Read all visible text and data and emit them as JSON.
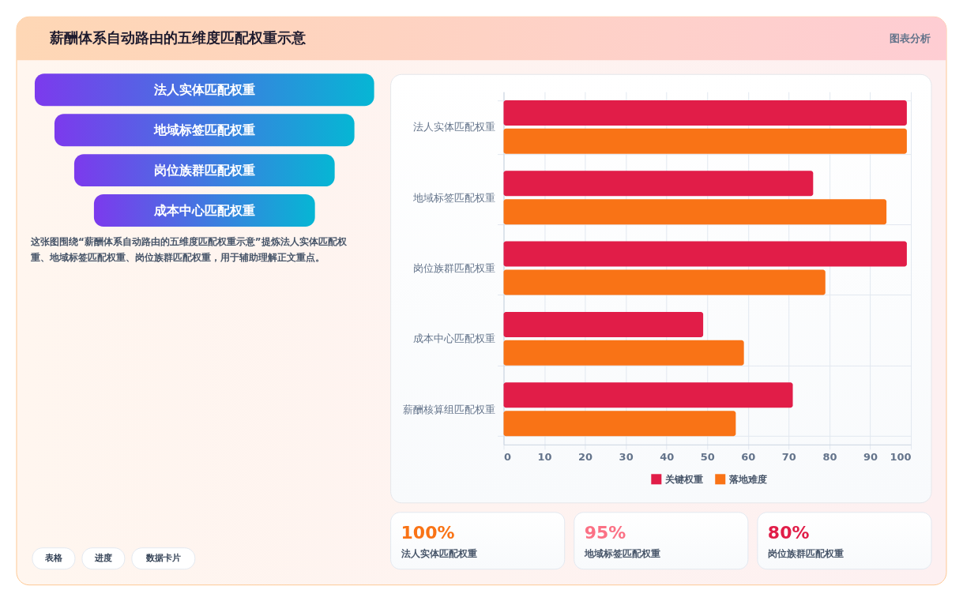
{
  "chart_data": [
    {
      "type": "other",
      "title": "薪酬体系自动路由的五维度匹配权重示意",
      "annotations": [
        "图表分析"
      ]
    },
    {
      "type": "other",
      "categories": [
        "法人实体匹配权重",
        "地域标签匹配权重",
        "岗位族群匹配权重",
        "成本中心匹配权重"
      ],
      "annotations": [
        "这张图围绕“薪酬体系自动路由的五维度匹配权重示意”提炼法人实体匹配权重、地域标签匹配权重、岗位族群匹配权重，用于辅助理解正文重点。"
      ]
    },
    {
      "type": "bar",
      "orientation": "horizontal",
      "categories": [
        "法人实体匹配权重",
        "地域标签匹配权重",
        "岗位族群匹配权重",
        "成本中心匹配权重",
        "薪酬核算组匹配权重"
      ],
      "series": [
        {
          "name": "关键权重",
          "color": "#e11d48",
          "values": [
            99,
            76,
            99,
            49,
            71
          ]
        },
        {
          "name": "落地难度",
          "color": "#f97316",
          "values": [
            99,
            94,
            79,
            59,
            57
          ]
        }
      ],
      "xlim": [
        0,
        100
      ],
      "xticks": [
        0,
        10,
        20,
        30,
        40,
        50,
        60,
        70,
        80,
        90,
        100
      ],
      "grid": true,
      "legend": "bottom"
    },
    {
      "type": "other",
      "annotations": [
        "100%",
        "法人实体匹配权重",
        "95%",
        "地域标签匹配权重",
        "80%",
        "岗位族群匹配权重"
      ],
      "colors": [
        "#f97316",
        "#fb7185",
        "#e11d48"
      ]
    },
    {
      "type": "other",
      "annotations": [
        "表格",
        "进度",
        "数据卡片"
      ]
    }
  ]
}
